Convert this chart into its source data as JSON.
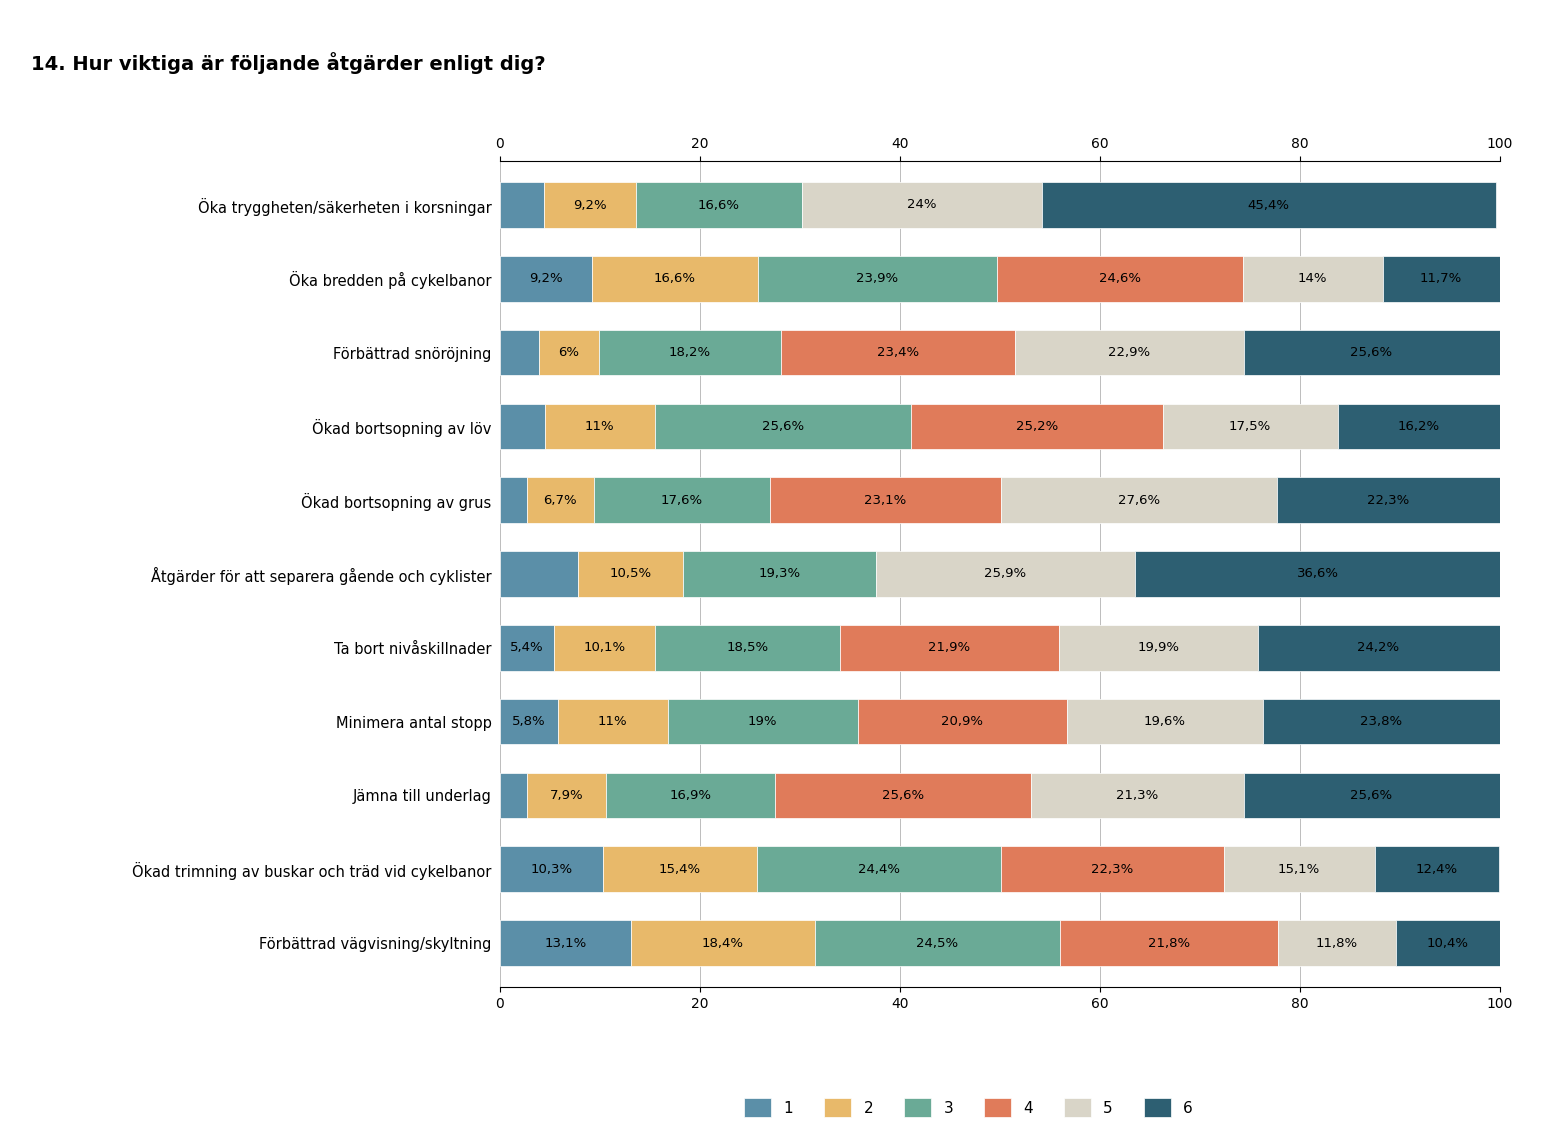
{
  "title": "14. Hur viktiga är följande åtgärder enligt dig?",
  "categories": [
    "Öka tryggheten/säkerheten i korsningar",
    "Öka bredden på cykelbanor",
    "Förbättrad snöröjning",
    "Ökad bortsopning av löv",
    "Ökad bortsopning av grus",
    "Åtgärder för att separera gående och cyklister",
    "Ta bort nivåskillnader",
    "Minimera antal stopp",
    "Jämna till underlag",
    "Ökad trimning av buskar och träd vid cykelbanor",
    "Förbättrad vägvisning/skyltning"
  ],
  "data": [
    [
      4.4,
      9.2,
      16.6,
      0.0,
      24.0,
      45.4
    ],
    [
      9.2,
      16.6,
      23.9,
      24.6,
      14.0,
      11.7
    ],
    [
      3.9,
      6.0,
      18.2,
      23.4,
      22.9,
      25.6
    ],
    [
      4.5,
      11.0,
      25.6,
      25.2,
      17.5,
      16.2
    ],
    [
      2.7,
      6.7,
      17.6,
      23.1,
      27.6,
      22.3
    ],
    [
      7.8,
      10.5,
      19.3,
      0.0,
      25.9,
      36.6
    ],
    [
      5.4,
      10.1,
      18.5,
      21.9,
      19.9,
      24.2
    ],
    [
      5.8,
      11.0,
      19.0,
      20.9,
      19.6,
      23.8
    ],
    [
      2.7,
      7.9,
      16.9,
      25.6,
      21.3,
      25.6
    ],
    [
      10.3,
      15.4,
      24.4,
      22.3,
      15.1,
      12.4
    ],
    [
      13.1,
      18.4,
      24.5,
      21.8,
      11.8,
      10.4
    ]
  ],
  "labels": [
    [
      "",
      "9,2%",
      "16,6%",
      "",
      "24%",
      "45,4%"
    ],
    [
      "9,2%",
      "16,6%",
      "23,9%",
      "24,6%",
      "14%",
      "11,7%"
    ],
    [
      "",
      "6%",
      "18,2%",
      "23,4%",
      "22,9%",
      "25,6%"
    ],
    [
      "",
      "11%",
      "25,6%",
      "25,2%",
      "17,5%",
      "16,2%"
    ],
    [
      "",
      "6,7%",
      "17,6%",
      "23,1%",
      "27,6%",
      "22,3%"
    ],
    [
      "",
      "10,5%",
      "19,3%",
      "",
      "25,9%",
      "36,6%"
    ],
    [
      "5,4%",
      "10,1%",
      "18,5%",
      "21,9%",
      "19,9%",
      "24,2%"
    ],
    [
      "5,8%",
      "11%",
      "19%",
      "20,9%",
      "19,6%",
      "23,8%"
    ],
    [
      "",
      "7,9%",
      "16,9%",
      "25,6%",
      "21,3%",
      "25,6%"
    ],
    [
      "10,3%",
      "15,4%",
      "24,4%",
      "22,3%",
      "15,1%",
      "12,4%"
    ],
    [
      "13,1%",
      "18,4%",
      "24,5%",
      "21,8%",
      "11,8%",
      "10,4%"
    ]
  ],
  "colors": [
    "#5b8fa8",
    "#e8b96a",
    "#6aaa96",
    "#e07b5a",
    "#d9d5c8",
    "#2d5f72"
  ],
  "legend_labels": [
    "1",
    "2",
    "3",
    "4",
    "5",
    "6"
  ],
  "xlim": [
    0,
    100
  ],
  "xlabel_ticks": [
    0,
    20,
    40,
    60,
    80,
    100
  ],
  "background_color": "#ffffff",
  "title_fontsize": 14,
  "bar_fontsize": 9.5
}
